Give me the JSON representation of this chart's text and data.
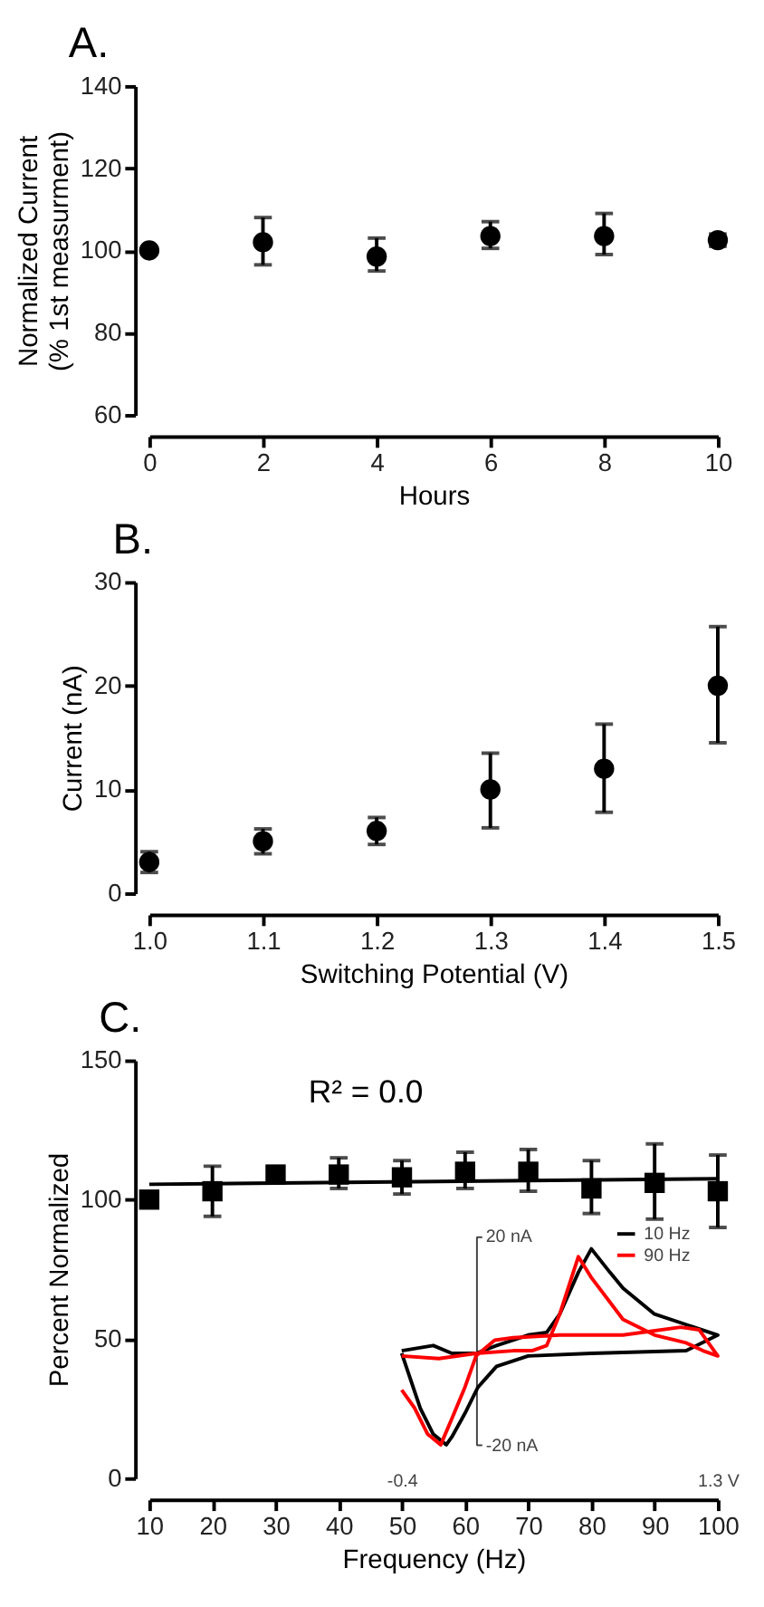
{
  "chart_data": [
    {
      "type": "scatter",
      "title": "A.",
      "xlabel": "Hours",
      "ylabel": "Normalized Current\n(% 1st measurment)",
      "marker": "circle",
      "x": [
        0,
        2,
        4,
        6,
        8,
        10
      ],
      "series": [
        {
          "color": "#000000",
          "values": [
            100,
            102,
            98.5,
            103.5,
            103.5,
            102.5
          ],
          "errors": [
            null,
            [
              96.5,
              108
            ],
            [
              95,
              103
            ],
            [
              100.5,
              107
            ],
            [
              99,
              109
            ],
            [
              101,
              104
            ]
          ]
        }
      ],
      "xlim": [
        0,
        10
      ],
      "xticks": [
        0,
        2,
        4,
        6,
        8,
        10
      ],
      "ylim": [
        60,
        140
      ],
      "yticks": [
        60,
        80,
        100,
        120,
        140
      ],
      "grid": false
    },
    {
      "type": "scatter",
      "title": "B.",
      "xlabel": "Switching  Potential  (V)",
      "ylabel": "Current  (nA)",
      "marker": "circle",
      "x": [
        1.0,
        1.1,
        1.2,
        1.3,
        1.4,
        1.5
      ],
      "series": [
        {
          "color": "#000000",
          "values": [
            3,
            5,
            6,
            10,
            12,
            20
          ],
          "errors": [
            [
              2,
              4
            ],
            [
              3.8,
              6.2
            ],
            [
              4.7,
              7.3
            ],
            [
              6.3,
              13.5
            ],
            [
              7.8,
              16.3
            ],
            [
              14.5,
              25.7
            ]
          ]
        }
      ],
      "xlim": [
        1.0,
        1.5
      ],
      "xticks": [
        {
          "value": 1.0,
          "label": "1.0"
        },
        {
          "value": 1.1,
          "label": "1.1"
        },
        {
          "value": 1.2,
          "label": "1.2"
        },
        {
          "value": 1.3,
          "label": "1.3"
        },
        {
          "value": 1.4,
          "label": "1.4"
        },
        {
          "value": 1.5,
          "label": "1.5"
        }
      ],
      "ylim": [
        0,
        30
      ],
      "yticks": [
        0,
        10,
        20,
        30
      ],
      "grid": false
    },
    {
      "type": "scatter",
      "title": "C.",
      "xlabel": "Frequency (Hz)",
      "ylabel": "Percent Normalized",
      "annotations": [
        "R² = 0.0"
      ],
      "x": [
        10,
        20,
        30,
        40,
        50,
        60,
        70,
        80,
        90,
        100
      ],
      "series": [
        {
          "color": "#000000",
          "marker": "square",
          "values": [
            100,
            103,
            109,
            109,
            108,
            110,
            110,
            104,
            106,
            103
          ],
          "errors": [
            null,
            [
              94,
              112
            ],
            [
              107,
              111
            ],
            [
              104,
              115
            ],
            [
              102,
              114
            ],
            [
              104,
              117
            ],
            [
              103,
              118
            ],
            [
              95,
              114
            ],
            [
              93,
              120
            ],
            [
              90,
              116
            ]
          ]
        },
        {
          "type": "line",
          "color": "#000000",
          "x": [
            10,
            100
          ],
          "values": [
            105.5,
            107.5
          ]
        }
      ],
      "xlim": [
        10,
        100
      ],
      "xticks": [
        10,
        20,
        30,
        40,
        50,
        60,
        70,
        80,
        90,
        100
      ],
      "ylim": [
        0,
        150
      ],
      "yticks": [
        0,
        50,
        100,
        150
      ],
      "grid": false
    },
    {
      "type": "line",
      "legend": "top right",
      "line_style": "solid",
      "series": [
        {
          "name": "10 Hz",
          "color": "#000000",
          "x": [
            -0.4,
            -0.23,
            -0.13,
            0.0,
            0.11,
            0.28,
            0.38,
            0.45,
            0.55,
            0.62,
            0.72,
            0.79,
            0.96,
            1.13,
            1.3,
            1.13,
            0.62,
            0.28,
            0.11,
            0.01,
            -0.06,
            -0.13,
            -0.16,
            -0.23,
            -0.3,
            -0.4
          ],
          "values": [
            -2,
            -1,
            -2.5,
            -2.5,
            -1,
            1,
            1.5,
            5,
            13,
            17.5,
            13,
            10,
            5,
            3,
            1,
            -2,
            -2.5,
            -3,
            -5,
            -9,
            -14,
            -18.5,
            -20,
            -18,
            -13,
            -2.5
          ]
        },
        {
          "name": "90 Hz",
          "color": "#ff0000",
          "x": [
            -0.4,
            -0.2,
            0.0,
            0.2,
            0.3,
            0.38,
            0.45,
            0.55,
            0.62,
            0.79,
            0.96,
            1.13,
            1.22,
            1.3,
            1.2,
            1.1,
            0.79,
            0.45,
            0.2,
            0.1,
            0.0,
            -0.06,
            -0.13,
            -0.19,
            -0.26,
            -0.33,
            -0.4
          ],
          "values": [
            -3,
            -3.5,
            -2.5,
            -2,
            -2,
            -1,
            5,
            16,
            12,
            4,
            1,
            -0.5,
            -2,
            -3,
            2,
            2.5,
            1,
            1,
            0.5,
            0,
            -3,
            -9,
            -15,
            -20,
            -18,
            -13,
            -9.5
          ]
        }
      ],
      "xlim": [
        -0.4,
        1.3
      ],
      "xticks": [
        {
          "value": -0.4,
          "label": "-0.4"
        },
        {
          "value": 1.3,
          "label": "1.3 V"
        }
      ],
      "ylim": [
        -20,
        20
      ],
      "yticks": [
        {
          "value": -20,
          "label": "-20 nA"
        },
        {
          "value": 20,
          "label": "20 nA"
        }
      ],
      "grid": false
    }
  ]
}
